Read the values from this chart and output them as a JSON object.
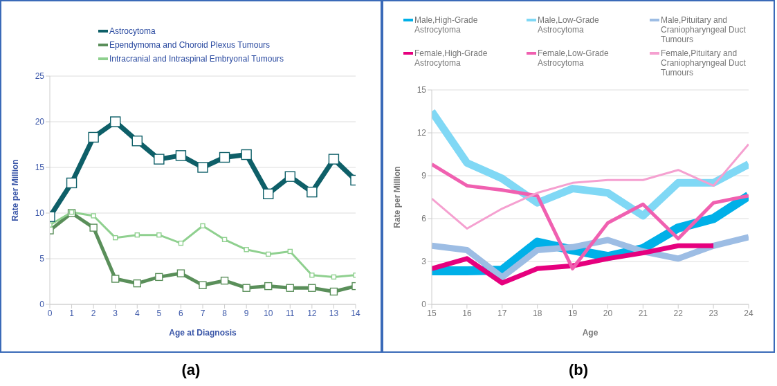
{
  "chart_data": [
    {
      "type": "line",
      "xlabel": "Age at Diagnosis",
      "ylabel": "Rate per Million",
      "x": [
        0,
        1,
        2,
        3,
        4,
        5,
        6,
        7,
        8,
        9,
        10,
        11,
        12,
        13,
        14
      ],
      "xlim": [
        0,
        14
      ],
      "xticks": [
        0,
        1,
        2,
        3,
        4,
        5,
        6,
        7,
        8,
        9,
        10,
        11,
        12,
        13,
        14
      ],
      "ylim": [
        0,
        25
      ],
      "yticks": [
        0,
        5,
        10,
        15,
        20,
        25
      ],
      "grid": "y",
      "legend": "top",
      "marker": "square",
      "annotations": [
        "(a)"
      ],
      "series": [
        {
          "name": "Astrocytoma",
          "color": "#0e5f68",
          "values": [
            9.6,
            13.3,
            18.3,
            20,
            17.9,
            15.9,
            16.3,
            15,
            16.1,
            16.4,
            12.1,
            14,
            12.3,
            15.9,
            13.6
          ]
        },
        {
          "name": "Ependymoma and Choroid Plexus Tumours",
          "color": "#5a8f5a",
          "values": [
            8.1,
            10,
            8.4,
            2.8,
            2.3,
            3,
            3.4,
            2.1,
            2.6,
            1.8,
            2,
            1.8,
            1.8,
            1.4,
            2
          ]
        },
        {
          "name": "Intracranial and Intraspinal Embryonal Tumours",
          "color": "#8fd08f",
          "values": [
            8.7,
            10.1,
            9.7,
            7.3,
            7.6,
            7.6,
            6.7,
            8.6,
            7.1,
            6,
            5.5,
            5.8,
            3.2,
            3,
            3.2
          ]
        }
      ]
    },
    {
      "type": "line",
      "xlabel": "Age",
      "ylabel": "Rate per Million",
      "x": [
        15,
        16,
        17,
        18,
        19,
        20,
        21,
        22,
        23,
        24
      ],
      "xlim": [
        15,
        24
      ],
      "xticks": [
        15,
        16,
        17,
        18,
        19,
        20,
        21,
        22,
        23,
        24
      ],
      "ylim": [
        0,
        15
      ],
      "yticks": [
        0,
        3,
        6,
        9,
        12,
        15
      ],
      "grid": "y",
      "legend": "top",
      "marker": "none",
      "annotations": [
        "(b)"
      ],
      "series": [
        {
          "name": "Male,High-Grade Astrocytoma",
          "color": "#00b0e8",
          "values": [
            2.35,
            2.35,
            2.4,
            4.35,
            3.8,
            3.35,
            3.9,
            5.35,
            6,
            7.6
          ]
        },
        {
          "name": "Male,Low-Grade Astrocytoma",
          "color": "#80d8f5",
          "values": [
            13.5,
            9.9,
            8.8,
            7.1,
            8.1,
            7.8,
            6.2,
            8.5,
            8.5,
            9.8
          ]
        },
        {
          "name": "Male,Pituitary and Craniopharyngeal Duct Tumours",
          "color": "#9dbde4",
          "values": [
            4.1,
            3.8,
            1.9,
            3.8,
            4,
            4.5,
            3.7,
            3.2,
            4.1,
            4.7
          ]
        },
        {
          "name": "Female,High-Grade Astrocytoma",
          "color": "#e6007e",
          "values": [
            2.5,
            3.2,
            1.5,
            2.5,
            2.7,
            3.2,
            3.6,
            4.1,
            4.1,
            null
          ]
        },
        {
          "name": "Female,Low-Grade Astrocytoma",
          "color": "#f060b0",
          "values": [
            9.8,
            8.3,
            8,
            7.6,
            2.5,
            5.7,
            7,
            4.6,
            7.1,
            7.6
          ]
        },
        {
          "name": "Female,Pituitary and Craniopharyngeal Duct Tumours",
          "color": "#f5a0d0",
          "values": [
            7.4,
            5.3,
            6.7,
            7.8,
            8.5,
            8.7,
            8.7,
            9.4,
            8.3,
            11.2
          ]
        }
      ]
    }
  ]
}
